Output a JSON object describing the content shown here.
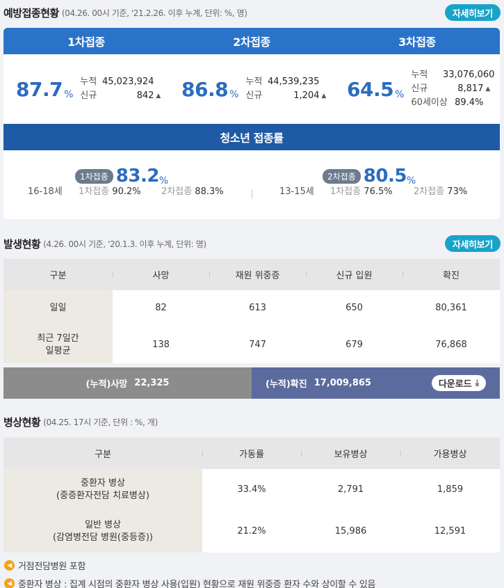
{
  "vaccination": {
    "title": "예방접종현황",
    "subtitle": "(04.26. 00시 기준, '21.2.26. 이후 누계, 단위: %, 명)",
    "more_label": "자세히보기",
    "doses": [
      {
        "label": "1차접종",
        "pct": "87.7",
        "unit": "%",
        "rows": [
          {
            "k": "누적",
            "v": "45,023,924"
          },
          {
            "k": "신규",
            "v": "842"
          }
        ]
      },
      {
        "label": "2차접종",
        "pct": "86.8",
        "unit": "%",
        "rows": [
          {
            "k": "누적",
            "v": "44,539,235"
          },
          {
            "k": "신규",
            "v": "1,204"
          }
        ]
      },
      {
        "label": "3차접종",
        "pct": "64.5",
        "unit": "%",
        "rows": [
          {
            "k": "누적",
            "v": "33,076,060"
          },
          {
            "k": "신규",
            "v": "8,817"
          },
          {
            "k": "60세이상",
            "v": "89.4%"
          }
        ]
      }
    ],
    "teen": {
      "title": "청소년 접종률",
      "groups": [
        {
          "age": "16-18세",
          "pill": "1차접종",
          "pct": "83.2",
          "unit": "%",
          "d1_label": "1차접종",
          "d1": "90.2%",
          "d2_label": "2차접종",
          "d2": "88.3%"
        },
        {
          "age": "13-15세",
          "pill": "2차접종",
          "pct": "80.5",
          "unit": "%",
          "d1_label": "1차접종",
          "d1": "76.5%",
          "d2_label": "2차접종",
          "d2": "73%"
        }
      ]
    }
  },
  "outbreak": {
    "title": "발생현황",
    "subtitle": "(4.26. 00시 기준, '20.1.3. 이후 누계, 단위: 명)",
    "more_label": "자세히보기",
    "columns": [
      "구분",
      "사망",
      "재원 위중증",
      "신규 입원",
      "확진"
    ],
    "rows": [
      {
        "label": "일일",
        "cells": [
          "82",
          "613",
          "650",
          "80,361"
        ]
      },
      {
        "label": "최근 7일간\n일평균",
        "cells": [
          "138",
          "747",
          "679",
          "76,868"
        ]
      }
    ],
    "cum_death_label": "(누적)사망",
    "cum_death": "22,325",
    "cum_confirmed_label": "(누적)확진",
    "cum_confirmed": "17,009,865",
    "download_label": "다운로드"
  },
  "beds": {
    "title": "병상현황",
    "subtitle": "(04.25. 17시 기준, 단위 : %, 개)",
    "columns": [
      "구분",
      "가동률",
      "보유병상",
      "가용병상"
    ],
    "rows": [
      {
        "label": "중환자 병상\n(중증환자전담 치료병상)",
        "cells": [
          "33.4%",
          "2,791",
          "1,859"
        ]
      },
      {
        "label": "일반 병상\n(감염병전담 병원(중등증))",
        "cells": [
          "21.2%",
          "15,986",
          "12,591"
        ]
      }
    ]
  },
  "notes": [
    "거점전담병원 포함",
    "중환자 병상 : 집계 시점의 중환자 병상 사용(입원) 현황으로 재원 위중증 환자 수와 상이할 수 있음"
  ]
}
